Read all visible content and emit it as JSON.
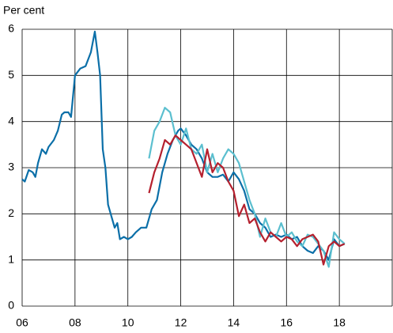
{
  "chart_data": {
    "type": "line",
    "y_label": "Per cent",
    "xlim": [
      2006,
      2020
    ],
    "ylim": [
      0,
      6
    ],
    "xticks": [
      {
        "value": 2006,
        "label": "06"
      },
      {
        "value": 2008,
        "label": "08"
      },
      {
        "value": 2010,
        "label": "10"
      },
      {
        "value": 2012,
        "label": "12"
      },
      {
        "value": 2014,
        "label": "14"
      },
      {
        "value": 2016,
        "label": "16"
      },
      {
        "value": 2018,
        "label": "18"
      }
    ],
    "yticks": [
      0,
      1,
      2,
      3,
      4,
      5,
      6
    ],
    "grid": true,
    "series": [
      {
        "color": "#0b6fa8",
        "x": [
          2006.0,
          2006.1,
          2006.25,
          2006.4,
          2006.5,
          2006.6,
          2006.75,
          2006.9,
          2007.0,
          2007.2,
          2007.35,
          2007.5,
          2007.6,
          2007.75,
          2007.85,
          2008.0,
          2008.2,
          2008.4,
          2008.5,
          2008.6,
          2008.75,
          2008.85,
          2008.95,
          2009.05,
          2009.15,
          2009.25,
          2009.4,
          2009.5,
          2009.6,
          2009.7,
          2009.85,
          2010.0,
          2010.15,
          2010.3,
          2010.5,
          2010.7,
          2010.9,
          2011.1,
          2011.3,
          2011.5,
          2011.7,
          2011.9,
          2012.0,
          2012.2,
          2012.4,
          2012.6,
          2012.8,
          2013.0,
          2013.2,
          2013.4,
          2013.6,
          2013.8,
          2014.0,
          2014.2,
          2014.4,
          2014.6,
          2014.8,
          2015.0,
          2015.2,
          2015.4,
          2015.6,
          2015.8,
          2016.0,
          2016.2,
          2016.4,
          2016.6,
          2016.8,
          2017.0,
          2017.2,
          2017.4,
          2017.6,
          2017.8,
          2018.0,
          2018.2
        ],
        "values": [
          2.75,
          2.7,
          2.95,
          2.9,
          2.8,
          3.1,
          3.4,
          3.3,
          3.45,
          3.6,
          3.8,
          4.15,
          4.2,
          4.2,
          4.1,
          5.0,
          5.15,
          5.2,
          5.35,
          5.5,
          5.95,
          5.5,
          5.0,
          3.4,
          3.0,
          2.2,
          1.9,
          1.7,
          1.8,
          1.45,
          1.5,
          1.45,
          1.5,
          1.6,
          1.7,
          1.7,
          2.1,
          2.3,
          2.9,
          3.3,
          3.6,
          3.8,
          3.85,
          3.7,
          3.5,
          3.4,
          3.2,
          2.9,
          2.8,
          2.8,
          2.85,
          2.7,
          2.9,
          2.75,
          2.5,
          2.1,
          2.0,
          1.8,
          1.7,
          1.5,
          1.55,
          1.5,
          1.55,
          1.45,
          1.5,
          1.3,
          1.2,
          1.15,
          1.3,
          1.2,
          1.0,
          1.45,
          1.3,
          1.35
        ]
      },
      {
        "color": "#5bbfcf",
        "x": [
          2010.8,
          2011.0,
          2011.2,
          2011.4,
          2011.6,
          2011.8,
          2012.0,
          2012.2,
          2012.4,
          2012.6,
          2012.8,
          2013.0,
          2013.2,
          2013.4,
          2013.6,
          2013.8,
          2014.0,
          2014.2,
          2014.4,
          2014.6,
          2014.8,
          2015.0,
          2015.2,
          2015.4,
          2015.6,
          2015.8,
          2016.0,
          2016.2,
          2016.4,
          2016.6,
          2016.8,
          2017.0,
          2017.2,
          2017.4,
          2017.6,
          2017.8,
          2018.0,
          2018.2
        ],
        "values": [
          3.2,
          3.8,
          4.0,
          4.3,
          4.2,
          3.7,
          3.5,
          3.85,
          3.4,
          3.3,
          3.5,
          2.9,
          3.3,
          2.9,
          3.2,
          3.4,
          3.3,
          3.1,
          2.7,
          2.3,
          2.0,
          1.5,
          1.9,
          1.6,
          1.5,
          1.8,
          1.5,
          1.6,
          1.4,
          1.3,
          1.55,
          1.5,
          1.35,
          1.2,
          0.85,
          1.6,
          1.45,
          1.35
        ]
      },
      {
        "color": "#b5202e",
        "x": [
          2010.8,
          2011.0,
          2011.2,
          2011.4,
          2011.6,
          2011.8,
          2012.0,
          2012.2,
          2012.4,
          2012.6,
          2012.8,
          2013.0,
          2013.2,
          2013.4,
          2013.6,
          2013.8,
          2014.0,
          2014.2,
          2014.4,
          2014.6,
          2014.8,
          2015.0,
          2015.2,
          2015.4,
          2015.6,
          2015.8,
          2016.0,
          2016.2,
          2016.4,
          2016.6,
          2016.8,
          2017.0,
          2017.2,
          2017.4,
          2017.6,
          2017.8,
          2018.0,
          2018.2
        ],
        "values": [
          2.45,
          2.9,
          3.2,
          3.6,
          3.5,
          3.7,
          3.6,
          3.5,
          3.4,
          3.1,
          2.8,
          3.4,
          2.9,
          3.1,
          3.0,
          2.7,
          2.5,
          1.95,
          2.2,
          1.8,
          1.9,
          1.6,
          1.4,
          1.6,
          1.5,
          1.4,
          1.5,
          1.45,
          1.3,
          1.45,
          1.5,
          1.55,
          1.4,
          0.9,
          1.3,
          1.4,
          1.3,
          1.35
        ]
      }
    ]
  }
}
